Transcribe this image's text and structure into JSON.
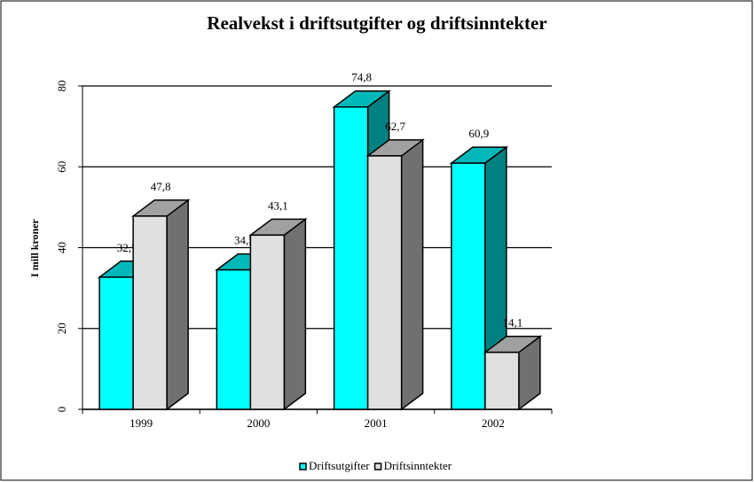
{
  "chart_data": {
    "type": "bar3d",
    "title": "Realvekst i driftsutgifter og driftsinntekter",
    "y_label": "I mill kroner",
    "categories": [
      "1999",
      "2000",
      "2001",
      "2002"
    ],
    "series": [
      {
        "name": "Driftsutgifter",
        "color": "#00ffff",
        "values": [
          32.7,
          34.5,
          74.8,
          60.9
        ],
        "value_labels": [
          "32,7",
          "34,5",
          "74,8",
          "60,9"
        ]
      },
      {
        "name": "Driftsinntekter",
        "color": "#e0e0e0",
        "values": [
          47.8,
          43.1,
          62.7,
          14.1
        ],
        "value_labels": [
          "47,8",
          "43,1",
          "62,7",
          "14,1"
        ]
      }
    ],
    "ylim": [
      0,
      80
    ],
    "yticks": [
      0,
      20,
      40,
      60,
      80
    ],
    "grid": true,
    "legend": "bottom"
  }
}
